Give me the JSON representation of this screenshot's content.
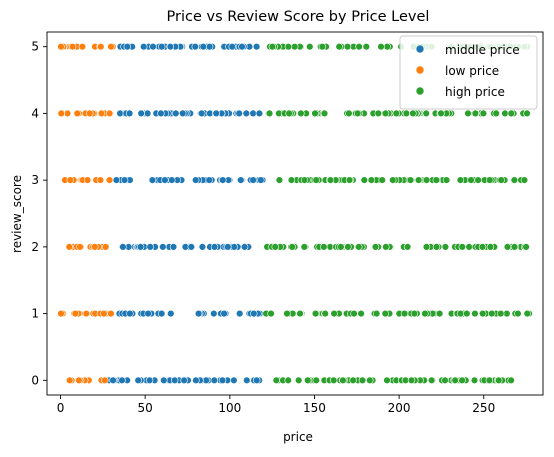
{
  "chart_data": {
    "type": "scatter",
    "title": "Price vs Review Score by Price Level",
    "xlabel": "price",
    "ylabel": "review_score",
    "xlim": [
      -8,
      285
    ],
    "ylim": [
      -0.22,
      5.22
    ],
    "xticks": [
      0,
      50,
      100,
      150,
      200,
      250
    ],
    "yticks": [
      0,
      1,
      2,
      3,
      4,
      5
    ],
    "grid": false,
    "legend_position": "top-right",
    "series": [
      {
        "name": "middle price",
        "color": "#1f77b4",
        "points": [
          {
            "score": 5,
            "x_min": 32,
            "x_max": 120
          },
          {
            "score": 4,
            "x_min": 32,
            "x_max": 120
          },
          {
            "score": 3,
            "x_min": 32,
            "x_max": 120
          },
          {
            "score": 2,
            "x_min": 30,
            "x_max": 120
          },
          {
            "score": 1,
            "x_min": 32,
            "x_max": 120
          },
          {
            "score": 0,
            "x_min": 28,
            "x_max": 120
          }
        ]
      },
      {
        "name": "low price",
        "color": "#ff7f0e",
        "points": [
          {
            "score": 5,
            "x_min": 0,
            "x_max": 31
          },
          {
            "score": 4,
            "x_min": 0,
            "x_max": 31
          },
          {
            "score": 3,
            "x_min": 2,
            "x_max": 31
          },
          {
            "score": 2,
            "x_min": 5,
            "x_max": 29
          },
          {
            "score": 1,
            "x_min": 0,
            "x_max": 31
          },
          {
            "score": 0,
            "x_min": 5,
            "x_max": 27
          }
        ]
      },
      {
        "name": "high price",
        "color": "#2ca02c",
        "points": [
          {
            "score": 5,
            "x_min": 121,
            "x_max": 277
          },
          {
            "score": 4,
            "x_min": 121,
            "x_max": 277
          },
          {
            "score": 3,
            "x_min": 121,
            "x_max": 277
          },
          {
            "score": 2,
            "x_min": 121,
            "x_max": 277
          },
          {
            "score": 1,
            "x_min": 121,
            "x_max": 277
          },
          {
            "score": 0,
            "x_min": 127,
            "x_max": 268
          }
        ]
      }
    ]
  }
}
